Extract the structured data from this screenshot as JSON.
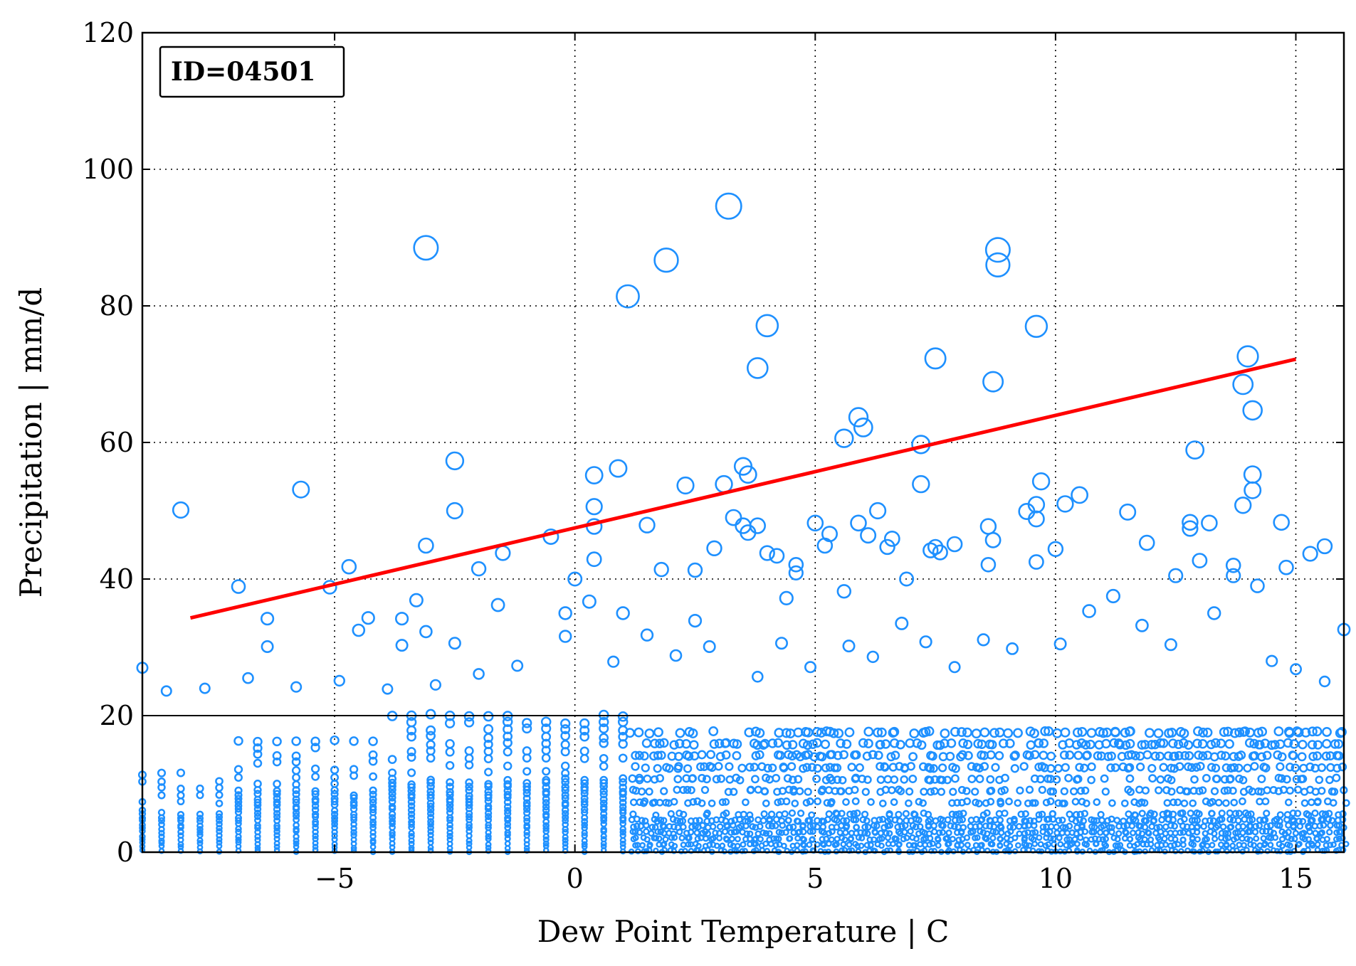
{
  "chart_data": {
    "type": "scatter",
    "title": "",
    "xlabel": "Dew Point Temperature | C",
    "ylabel": "Precipitation | mm/d",
    "xlim": [
      -9,
      16
    ],
    "ylim": [
      0,
      120
    ],
    "xticks": [
      -5,
      0,
      5,
      10,
      15
    ],
    "yticks": [
      0,
      20,
      40,
      60,
      80,
      100,
      120
    ],
    "xtick_labels": [
      "−5",
      "0",
      "5",
      "10",
      "15"
    ],
    "ytick_labels": [
      "0",
      "20",
      "40",
      "60",
      "80",
      "100",
      "120"
    ],
    "grid": true,
    "annotation": "ID=04501",
    "marker_color": "#1E90FF",
    "threshold": {
      "y": 20,
      "color": "#000000"
    },
    "fit_line": {
      "x": [
        -8,
        15
      ],
      "y": [
        34.3,
        72.2
      ],
      "color": "#FF0000"
    },
    "bulk_distribution": "dense cloud of observations below 20 mm/d across dew point -9 to 16 C",
    "points": [
      [
        -8.2,
        50.1
      ],
      [
        -7,
        38.9
      ],
      [
        -6.4,
        34.2
      ],
      [
        -6.4,
        30.1
      ],
      [
        -5.7,
        53.1
      ],
      [
        -5.1,
        38.8
      ],
      [
        -4.7,
        41.8
      ],
      [
        -4.3,
        34.3
      ],
      [
        -4.5,
        32.5
      ],
      [
        -3.6,
        34.2
      ],
      [
        -3.6,
        30.3
      ],
      [
        -3.3,
        36.9
      ],
      [
        -3.1,
        88.5
      ],
      [
        -3.1,
        44.9
      ],
      [
        -3.1,
        32.3
      ],
      [
        -2.5,
        57.3
      ],
      [
        -2.5,
        50.0
      ],
      [
        -2.5,
        30.6
      ],
      [
        -2.0,
        41.5
      ],
      [
        -1.6,
        36.2
      ],
      [
        -1.5,
        43.8
      ],
      [
        -0.5,
        46.2
      ],
      [
        -0.2,
        35.0
      ],
      [
        0,
        40.0
      ],
      [
        0.4,
        55.2
      ],
      [
        0.4,
        50.6
      ],
      [
        0.4,
        47.7
      ],
      [
        0.4,
        42.9
      ],
      [
        0.3,
        36.7
      ],
      [
        0.9,
        56.2
      ],
      [
        1.0,
        35.0
      ],
      [
        1.1,
        81.4
      ],
      [
        1.5,
        47.9
      ],
      [
        1.9,
        86.7
      ],
      [
        1.8,
        41.4
      ],
      [
        2.3,
        53.7
      ],
      [
        2.5,
        41.3
      ],
      [
        2.5,
        33.9
      ],
      [
        2.9,
        44.5
      ],
      [
        3.1,
        53.9
      ],
      [
        3.2,
        94.6
      ],
      [
        3.3,
        49.0
      ],
      [
        3.5,
        56.5
      ],
      [
        3.5,
        47.8
      ],
      [
        3.6,
        55.3
      ],
      [
        3.6,
        46.8
      ],
      [
        3.8,
        70.9
      ],
      [
        3.8,
        47.8
      ],
      [
        4.0,
        77.1
      ],
      [
        4.0,
        43.8
      ],
      [
        4.2,
        43.4
      ],
      [
        4.4,
        37.2
      ],
      [
        4.6,
        42.1
      ],
      [
        4.6,
        40.9
      ],
      [
        5.0,
        48.2
      ],
      [
        5.2,
        44.9
      ],
      [
        5.3,
        46.6
      ],
      [
        5.6,
        60.6
      ],
      [
        5.6,
        38.2
      ],
      [
        5.9,
        63.7
      ],
      [
        5.9,
        48.2
      ],
      [
        6.0,
        62.2
      ],
      [
        6.1,
        46.4
      ],
      [
        6.3,
        50.0
      ],
      [
        6.5,
        44.7
      ],
      [
        6.6,
        45.9
      ],
      [
        6.9,
        40.0
      ],
      [
        7.2,
        59.7
      ],
      [
        7.2,
        53.9
      ],
      [
        7.4,
        44.2
      ],
      [
        7.5,
        72.3
      ],
      [
        7.5,
        44.7
      ],
      [
        7.6,
        43.9
      ],
      [
        7.9,
        45.1
      ],
      [
        8.6,
        47.7
      ],
      [
        8.6,
        42.1
      ],
      [
        8.7,
        68.9
      ],
      [
        8.7,
        45.7
      ],
      [
        8.8,
        88.2
      ],
      [
        8.8,
        86.0
      ],
      [
        9.4,
        49.9
      ],
      [
        9.6,
        77.0
      ],
      [
        9.6,
        50.9
      ],
      [
        9.6,
        48.8
      ],
      [
        9.6,
        42.5
      ],
      [
        9.7,
        54.3
      ],
      [
        10.0,
        44.4
      ],
      [
        10.2,
        51.0
      ],
      [
        10.5,
        52.3
      ],
      [
        11.5,
        49.8
      ],
      [
        11.9,
        45.3
      ],
      [
        12.5,
        40.5
      ],
      [
        12.8,
        48.3
      ],
      [
        12.8,
        47.4
      ],
      [
        12.9,
        58.9
      ],
      [
        13.0,
        42.7
      ],
      [
        13.2,
        48.2
      ],
      [
        13.7,
        42.0
      ],
      [
        13.7,
        40.5
      ],
      [
        13.9,
        50.8
      ],
      [
        13.9,
        68.5
      ],
      [
        14.0,
        72.6
      ],
      [
        14.1,
        64.7
      ],
      [
        14.1,
        55.3
      ],
      [
        14.1,
        53.0
      ],
      [
        14.2,
        39.0
      ],
      [
        14.7,
        48.3
      ],
      [
        14.8,
        41.7
      ],
      [
        15.3,
        43.7
      ],
      [
        15.6,
        44.8
      ],
      [
        15.0,
        26.8
      ],
      [
        16.0,
        32.6
      ],
      [
        15.6,
        25.0
      ],
      [
        14.5,
        28.0
      ],
      [
        13.3,
        35.0
      ],
      [
        12.4,
        30.4
      ],
      [
        11.8,
        33.2
      ],
      [
        11.2,
        37.5
      ],
      [
        10.7,
        35.3
      ],
      [
        10.1,
        30.5
      ],
      [
        9.1,
        29.8
      ],
      [
        8.5,
        31.1
      ],
      [
        7.9,
        27.1
      ],
      [
        7.3,
        30.8
      ],
      [
        6.8,
        33.5
      ],
      [
        6.2,
        28.6
      ],
      [
        5.7,
        30.2
      ],
      [
        4.9,
        27.1
      ],
      [
        4.3,
        30.6
      ],
      [
        3.8,
        25.7
      ],
      [
        2.8,
        30.1
      ],
      [
        2.1,
        28.8
      ],
      [
        1.5,
        31.8
      ],
      [
        0.8,
        27.9
      ],
      [
        -0.2,
        31.6
      ],
      [
        -1.2,
        27.3
      ],
      [
        -2.0,
        26.1
      ],
      [
        -2.9,
        24.5
      ],
      [
        -3.9,
        23.9
      ],
      [
        -4.9,
        25.1
      ],
      [
        -5.8,
        24.2
      ],
      [
        -6.8,
        25.5
      ],
      [
        -7.7,
        24.0
      ],
      [
        -8.5,
        23.6
      ],
      [
        -9.0,
        27.0
      ]
    ]
  }
}
